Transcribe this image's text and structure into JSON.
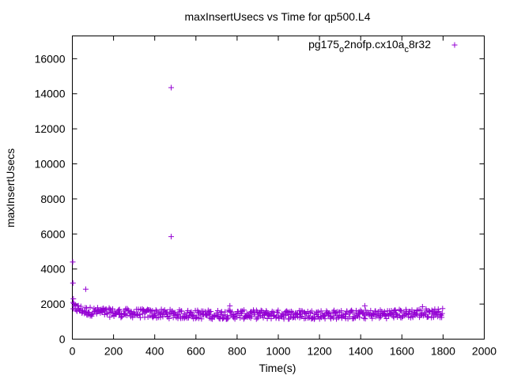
{
  "chart_data": {
    "type": "scatter",
    "title": "maxInsertUsecs vs Time for qp500.L4",
    "xlabel": "Time(s)",
    "ylabel": "maxInsertUsecs",
    "xlim": [
      0,
      2000
    ],
    "ylim": [
      0,
      17300
    ],
    "xticks": [
      0,
      200,
      400,
      600,
      800,
      1000,
      1200,
      1400,
      1600,
      1800,
      2000
    ],
    "xtick_labels": [
      "0",
      "200",
      "400",
      "600",
      "800",
      "1000",
      "1200",
      "1400",
      "1600",
      "1800",
      "2000"
    ],
    "yticks": [
      0,
      2000,
      4000,
      6000,
      8000,
      10000,
      12000,
      14000,
      16000
    ],
    "ytick_labels": [
      "0",
      "2000",
      "4000",
      "6000",
      "8000",
      "10000",
      "12000",
      "14000",
      "16000"
    ],
    "grid": false,
    "legend_position": "top-right",
    "series": [
      {
        "name": "pg175_o2nofp.cx10a_c8r32",
        "legend_parts": {
          "a": "pg175",
          "b": "o",
          "c": "2nofp.cx10a",
          "d": "c",
          "e": "8r32"
        },
        "color": "#9400d3",
        "marker": "plus",
        "outliers": [
          {
            "x": 2,
            "y": 4400
          },
          {
            "x": 3,
            "y": 3200
          },
          {
            "x": 5,
            "y": 2300
          },
          {
            "x": 65,
            "y": 2850
          },
          {
            "x": 480,
            "y": 14350
          },
          {
            "x": 480,
            "y": 5850
          },
          {
            "x": 765,
            "y": 1900
          },
          {
            "x": 1420,
            "y": 1900
          },
          {
            "x": 1700,
            "y": 1850
          }
        ],
        "band": {
          "x_start": 0,
          "x_end": 1800,
          "x_step": 6,
          "trend": [
            {
              "x": 0,
              "y": 1850
            },
            {
              "x": 60,
              "y": 1600
            },
            {
              "x": 200,
              "y": 1500
            },
            {
              "x": 600,
              "y": 1400
            },
            {
              "x": 1000,
              "y": 1400
            },
            {
              "x": 1400,
              "y": 1400
            },
            {
              "x": 1800,
              "y": 1500
            }
          ],
          "spread": 260
        }
      }
    ]
  }
}
